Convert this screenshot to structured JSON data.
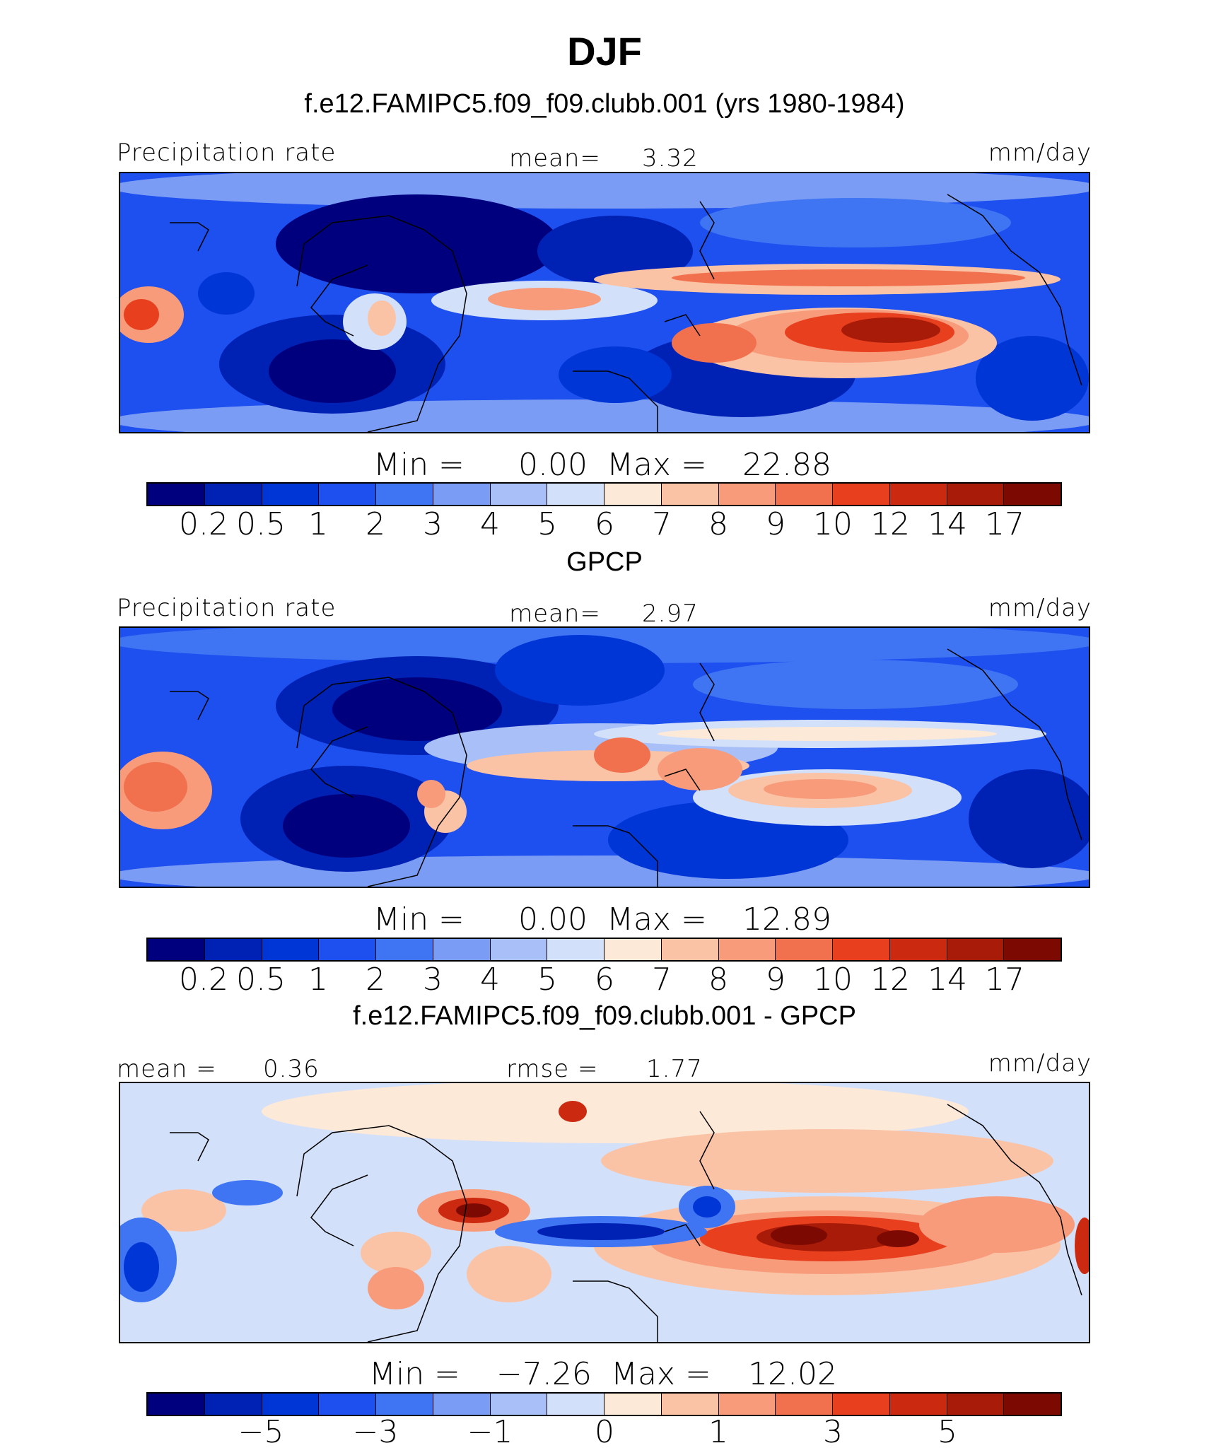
{
  "title": "DJF",
  "colors": [
    "#00007f",
    "#0022b4",
    "#0035d6",
    "#1e4fef",
    "#3f75f3",
    "#7b9cf4",
    "#a8bff7",
    "#d2e0fa",
    "#fde9d8",
    "#fbc3a6",
    "#f79b7b",
    "#f1714f",
    "#e8401f",
    "#cc2a10",
    "#a71b08",
    "#7d0a02"
  ],
  "panels": [
    {
      "title": "f.e12.FAMIPC5.f09_f09.clubb.001 (yrs 1980-1984)",
      "left_label": "Precipitation rate",
      "center_label": "mean=",
      "center_value": "3.32",
      "units": "mm/day",
      "min_label": "Min  =",
      "min_value": "0.00",
      "max_label": "Max  =",
      "max_value": "22.88",
      "ticks": [
        "0.2",
        "0.5",
        "1",
        "2",
        "3",
        "4",
        "5",
        "6",
        "7",
        "8",
        "9",
        "10",
        "12",
        "14",
        "17"
      ]
    },
    {
      "title": "GPCP",
      "left_label": "Precipitation rate",
      "center_label": "mean=",
      "center_value": "2.97",
      "units": "mm/day",
      "min_label": "Min  =",
      "min_value": "0.00",
      "max_label": "Max  =",
      "max_value": "12.89",
      "ticks": [
        "0.2",
        "0.5",
        "1",
        "2",
        "3",
        "4",
        "5",
        "6",
        "7",
        "8",
        "9",
        "10",
        "12",
        "14",
        "17"
      ]
    },
    {
      "title": "f.e12.FAMIPC5.f09_f09.clubb.001 - GPCP",
      "left_label": "mean  =",
      "left_value": "0.36",
      "center_label": "rmse  =",
      "center_value": "1.77",
      "units": "mm/day",
      "min_label": "Min  =",
      "min_value": "−7.26",
      "max_label": "Max  =",
      "max_value": "12.02",
      "ticks": [
        "−5",
        "−3",
        "−1",
        "0",
        "1",
        "3",
        "5"
      ]
    }
  ]
}
